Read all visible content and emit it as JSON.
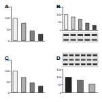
{
  "chart_data": [
    {
      "type": "bar",
      "title": "A",
      "categories": [
        null,
        null,
        null,
        null
      ],
      "values": [
        100,
        78,
        45,
        30
      ],
      "colors": [
        "#f2f2f2",
        "#b0b0b0",
        "#808080",
        "#404040"
      ],
      "ylim": [
        0,
        150
      ],
      "yticks": [
        0,
        50,
        100,
        150
      ]
    },
    {
      "type": "bar",
      "title": "B",
      "categories": [
        null,
        null,
        null,
        null,
        null
      ],
      "values": [
        100,
        85,
        70,
        45,
        30
      ],
      "colors": [
        "#f2f2f2",
        "#c8c8c8",
        "#a0a0a0",
        "#707070",
        "#404040"
      ],
      "ylim": [
        0,
        150
      ],
      "yticks": [
        0,
        50,
        100,
        150
      ]
    },
    {
      "type": "bar",
      "title": "C",
      "categories": [
        null,
        null,
        null,
        null
      ],
      "values": [
        100,
        70,
        45,
        30
      ],
      "colors": [
        "#f2f2f2",
        "#b0b0b0",
        "#808080",
        "#404040"
      ],
      "ylim": [
        0,
        150
      ],
      "yticks": [
        0,
        50,
        100,
        150
      ]
    },
    {
      "type": "bar",
      "title": "D",
      "categories": [
        null,
        null,
        null
      ],
      "values": [
        100,
        80,
        55
      ],
      "colors": [
        "#202020",
        "#707070",
        "#b0b0b0"
      ],
      "ylim": [
        0,
        150
      ],
      "yticks": [
        0,
        50,
        100,
        150
      ]
    }
  ]
}
